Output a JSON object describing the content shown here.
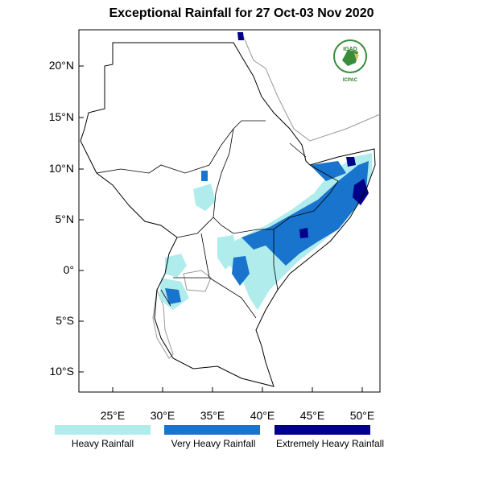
{
  "title": "Exceptional Rainfall for 27 Oct-03 Nov 2020",
  "logo": {
    "text_top": "IGAD",
    "text_bottom": "ICPAC"
  },
  "map": {
    "lat_range": [
      -12,
      23.5
    ],
    "lon_range": [
      21.6,
      51.8
    ],
    "lat_ticks": [
      "20°N",
      "15°N",
      "10°N",
      "5°N",
      "0°",
      "5°S",
      "10°S"
    ],
    "lon_ticks": [
      "25°E",
      "30°E",
      "35°E",
      "40°E",
      "45°E",
      "50°E"
    ]
  },
  "legend": [
    {
      "label": "Heavy Rainfall",
      "color": "#b0ecec"
    },
    {
      "label": "Very Heavy Rainfall",
      "color": "#1874cd"
    },
    {
      "label": "Extremely Heavy Rainfall",
      "color": "#00008b"
    }
  ]
}
